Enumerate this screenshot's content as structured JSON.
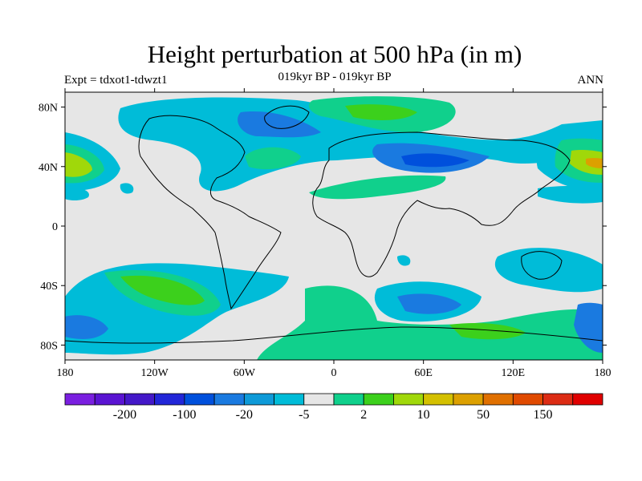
{
  "title": "Height perturbation at 500 hPa (in m)",
  "subtitle": "019kyr BP - 019kyr BP",
  "left_label": "Expt = tdxot1-tdwzt1",
  "right_label": "ANN",
  "map": {
    "lat_ticks": [
      {
        "label": "80N",
        "value": 80
      },
      {
        "label": "40N",
        "value": 40
      },
      {
        "label": "0",
        "value": 0
      },
      {
        "label": "40S",
        "value": -40
      },
      {
        "label": "80S",
        "value": -80
      }
    ],
    "lon_ticks": [
      {
        "label": "180",
        "value": -180
      },
      {
        "label": "120W",
        "value": -120
      },
      {
        "label": "60W",
        "value": -60
      },
      {
        "label": "0",
        "value": 0
      },
      {
        "label": "60E",
        "value": 60
      },
      {
        "label": "120E",
        "value": 120
      },
      {
        "label": "180",
        "value": 180
      }
    ],
    "background_color": "#e6e6e6"
  },
  "colorbar": {
    "colors": [
      "#7a1fe0",
      "#5a14d2",
      "#4418c8",
      "#2226d8",
      "#0050dc",
      "#1a7ae0",
      "#0e9ad8",
      "#00bcd8",
      "#e6e6e6",
      "#10d08c",
      "#3cd01c",
      "#a0d80a",
      "#d4c000",
      "#dca000",
      "#e07000",
      "#e04a00",
      "#dc2c14",
      "#e00000"
    ],
    "labels": [
      {
        "text": "-200",
        "after_box": 1
      },
      {
        "text": "-100",
        "after_box": 3
      },
      {
        "text": "-20",
        "after_box": 5
      },
      {
        "text": "-5",
        "after_box": 7
      },
      {
        "text": "2",
        "after_box": 9
      },
      {
        "text": "10",
        "after_box": 11
      },
      {
        "text": "50",
        "after_box": 13
      },
      {
        "text": "150",
        "after_box": 15
      }
    ]
  }
}
